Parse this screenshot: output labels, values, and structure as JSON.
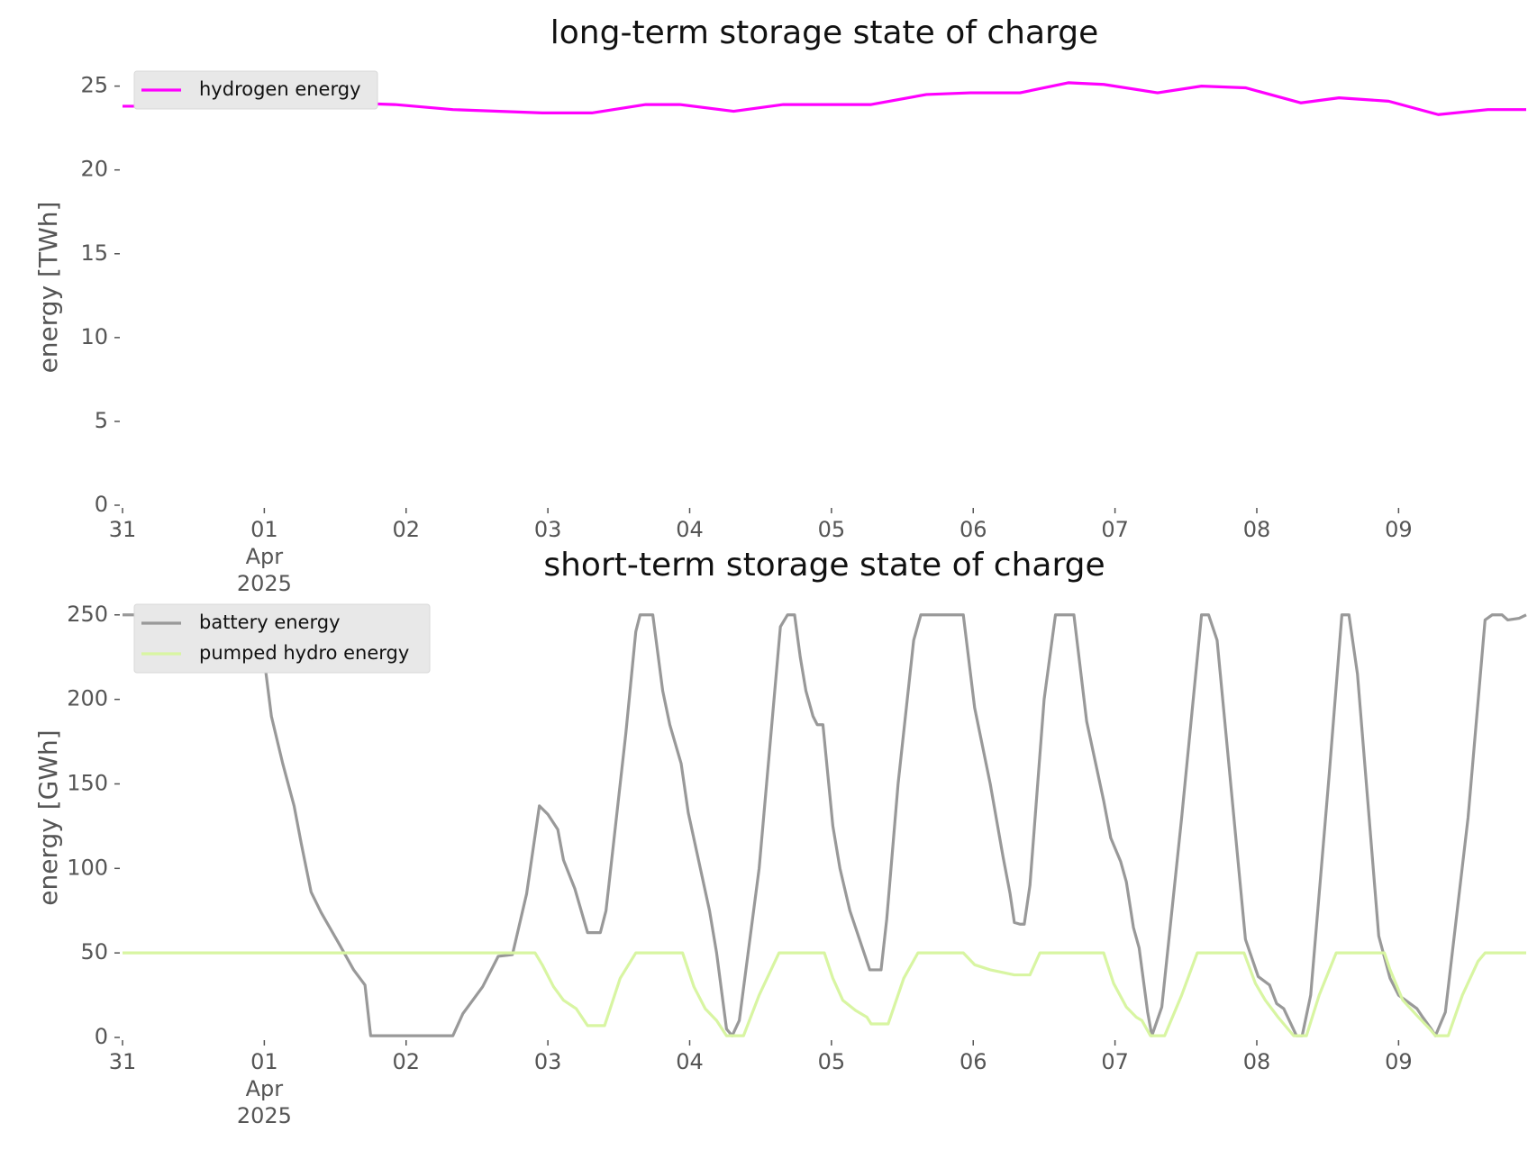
{
  "chart_data": [
    {
      "type": "line",
      "title": "long-term storage state of charge",
      "ylabel": "energy [TWh]",
      "legend": "upper left",
      "xlim": [
        0,
        9.9
      ],
      "xticks": [
        {
          "value": 0,
          "label": "31"
        },
        {
          "value": 1,
          "label": "01\nApr\n2025"
        },
        {
          "value": 2,
          "label": "02"
        },
        {
          "value": 3,
          "label": "03"
        },
        {
          "value": 4,
          "label": "04"
        },
        {
          "value": 5,
          "label": "05"
        },
        {
          "value": 6,
          "label": "06"
        },
        {
          "value": 7,
          "label": "07"
        },
        {
          "value": 8,
          "label": "08"
        },
        {
          "value": 9,
          "label": "09"
        }
      ],
      "ylim": [
        0,
        26
      ],
      "yticks": [
        0,
        5,
        10,
        15,
        20,
        25
      ],
      "series": [
        {
          "name": "hydrogen energy",
          "color": "#ff00ff",
          "x": [
            0,
            0.39,
            0.6,
            0.81,
            1.22,
            1.57,
            1.92,
            2.33,
            2.96,
            3.31,
            3.69,
            3.93,
            4.31,
            4.66,
            5.28,
            5.67,
            5.98,
            6.33,
            6.67,
            6.92,
            7.3,
            7.61,
            7.92,
            8.31,
            8.58,
            8.93,
            9.28,
            9.63,
            9.9
          ],
          "values": [
            23.8,
            23.8,
            24.0,
            24.2,
            24.2,
            24.0,
            23.9,
            23.6,
            23.4,
            23.4,
            23.9,
            23.9,
            23.5,
            23.9,
            23.9,
            24.5,
            24.6,
            24.6,
            25.2,
            25.1,
            24.6,
            25.0,
            24.9,
            24.0,
            24.3,
            24.1,
            23.3,
            23.6,
            23.6
          ]
        }
      ]
    },
    {
      "type": "line",
      "title": "short-term storage state of charge",
      "ylabel": "energy [GWh]",
      "legend": "upper left",
      "xlim": [
        0,
        9.9
      ],
      "xticks": [
        {
          "value": 0,
          "label": "31"
        },
        {
          "value": 1,
          "label": "01\nApr\n2025"
        },
        {
          "value": 2,
          "label": "02"
        },
        {
          "value": 3,
          "label": "03"
        },
        {
          "value": 4,
          "label": "04"
        },
        {
          "value": 5,
          "label": "05"
        },
        {
          "value": 6,
          "label": "06"
        },
        {
          "value": 7,
          "label": "07"
        },
        {
          "value": 8,
          "label": "08"
        },
        {
          "value": 9,
          "label": "09"
        }
      ],
      "ylim": [
        0,
        260
      ],
      "yticks": [
        0,
        50,
        100,
        150,
        200,
        250
      ],
      "series": [
        {
          "name": "battery energy",
          "color": "#999999",
          "x": [
            0,
            0.96,
            1.05,
            1.13,
            1.21,
            1.26,
            1.33,
            1.4,
            1.53,
            1.63,
            1.71,
            1.75,
            2.33,
            2.4,
            2.54,
            2.65,
            2.75,
            2.85,
            2.94,
            3.0,
            3.07,
            3.11,
            3.19,
            3.28,
            3.37,
            3.41,
            3.55,
            3.62,
            3.65,
            3.74,
            3.81,
            3.86,
            3.94,
            3.99,
            4.14,
            4.19,
            4.26,
            4.3,
            4.35,
            4.49,
            4.64,
            4.69,
            4.74,
            4.78,
            4.82,
            4.87,
            4.9,
            4.94,
            5.01,
            5.06,
            5.13,
            5.23,
            5.27,
            5.35,
            5.39,
            5.47,
            5.58,
            5.63,
            5.93,
            6.01,
            6.12,
            6.21,
            6.26,
            6.29,
            6.33,
            6.36,
            6.4,
            6.5,
            6.58,
            6.71,
            6.8,
            6.92,
            6.97,
            7.04,
            7.08,
            7.13,
            7.17,
            7.23,
            7.26,
            7.33,
            7.47,
            7.61,
            7.66,
            7.72,
            7.92,
            8.01,
            8.09,
            8.14,
            8.19,
            8.28,
            8.32,
            8.38,
            8.51,
            8.6,
            8.65,
            8.71,
            8.86,
            8.94,
            9.0,
            9.13,
            9.17,
            9.23,
            9.26,
            9.33,
            9.49,
            9.61,
            9.66,
            9.73,
            9.77,
            9.85,
            9.9
          ],
          "values": [
            250,
            250,
            190,
            162,
            137,
            115,
            86,
            74,
            55,
            40,
            31,
            1,
            1,
            14,
            30,
            48,
            49,
            85,
            137,
            132,
            123,
            105,
            88,
            62,
            62,
            75,
            180,
            240,
            250,
            250,
            205,
            185,
            162,
            133,
            75,
            50,
            5,
            1,
            10,
            100,
            243,
            250,
            250,
            225,
            205,
            190,
            185,
            185,
            125,
            100,
            75,
            50,
            40,
            40,
            70,
            150,
            235,
            250,
            250,
            195,
            150,
            107,
            85,
            68,
            67,
            67,
            90,
            200,
            250,
            250,
            187,
            140,
            118,
            104,
            92,
            65,
            53,
            15,
            1,
            18,
            130,
            250,
            250,
            235,
            58,
            36,
            31,
            20,
            17,
            1,
            1,
            25,
            155,
            250,
            250,
            215,
            60,
            35,
            25,
            17,
            12,
            5,
            1,
            15,
            130,
            247,
            250,
            250,
            247,
            248,
            250
          ]
        },
        {
          "name": "pumped hydro energy",
          "color": "#d8f5a2",
          "x": [
            0,
            2.91,
            2.96,
            3.04,
            3.11,
            3.2,
            3.28,
            3.4,
            3.51,
            3.62,
            3.95,
            4.03,
            4.11,
            4.19,
            4.26,
            4.38,
            4.49,
            4.63,
            4.95,
            5.01,
            5.08,
            5.17,
            5.25,
            5.28,
            5.4,
            5.51,
            5.61,
            5.93,
            6.01,
            6.12,
            6.29,
            6.4,
            6.47,
            6.92,
            6.99,
            7.08,
            7.15,
            7.19,
            7.25,
            7.35,
            7.47,
            7.58,
            7.91,
            7.99,
            8.06,
            8.15,
            8.21,
            8.26,
            8.35,
            8.44,
            8.56,
            8.9,
            8.94,
            9.03,
            9.14,
            9.22,
            9.26,
            9.35,
            9.45,
            9.56,
            9.61,
            9.9
          ],
          "values": [
            50,
            50,
            43,
            30,
            22,
            17,
            7,
            7,
            35,
            50,
            50,
            30,
            17,
            10,
            1,
            1,
            25,
            50,
            50,
            35,
            22,
            16,
            12,
            8,
            8,
            35,
            50,
            50,
            43,
            40,
            37,
            37,
            50,
            50,
            32,
            18,
            12,
            10,
            1,
            1,
            25,
            50,
            50,
            32,
            22,
            12,
            6,
            1,
            1,
            25,
            50,
            50,
            40,
            22,
            12,
            5,
            1,
            1,
            25,
            45,
            50,
            50
          ]
        }
      ]
    }
  ]
}
